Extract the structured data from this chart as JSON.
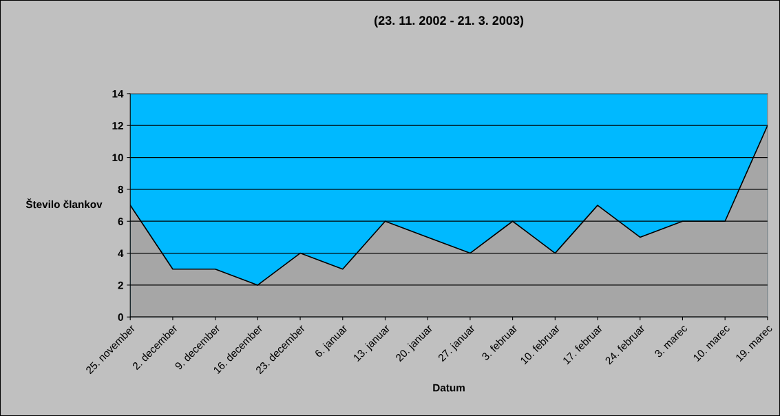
{
  "chart_data": {
    "type": "area",
    "title": "(23. 11. 2002 - 21. 3. 2003)",
    "xlabel": "Datum",
    "ylabel": "Število člankov",
    "categories": [
      "25. november",
      "2. december",
      "9. december",
      "16. december",
      "23. december",
      "6. januar",
      "13. januar",
      "20. januar",
      "27. januar",
      "3. februar",
      "10. februar",
      "17. februar",
      "24. februar",
      "3. marec",
      "10. marec",
      "19. marec"
    ],
    "series": [
      {
        "color": "#a6a6a6",
        "values": [
          7,
          3,
          3,
          2,
          4,
          3,
          6,
          5,
          4,
          6,
          4,
          7,
          5,
          6,
          6,
          12
        ]
      }
    ],
    "ylim": [
      0,
      14
    ],
    "yticks": [
      0,
      2,
      4,
      6,
      8,
      10,
      12,
      14
    ],
    "grid": "y",
    "legend": false
  }
}
